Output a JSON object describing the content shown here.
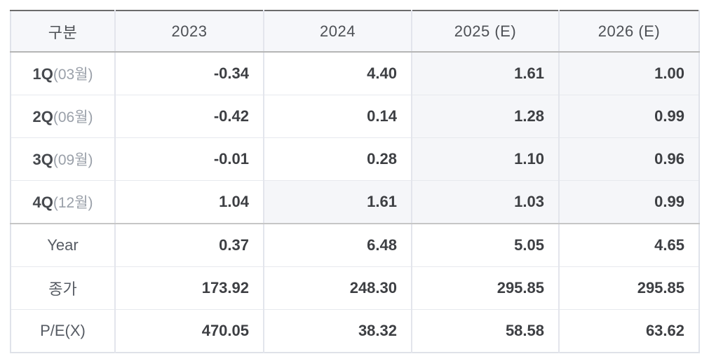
{
  "table": {
    "header": [
      "구분",
      "2023",
      "2024",
      "2025 (E)",
      "2026 (E)"
    ],
    "rows": [
      {
        "label": "1Q",
        "sublabel": "(03월)",
        "cells": [
          "-0.34",
          "4.40",
          "1.61",
          "1.00"
        ]
      },
      {
        "label": "2Q",
        "sublabel": "(06월)",
        "cells": [
          "-0.42",
          "0.14",
          "1.28",
          "0.99"
        ]
      },
      {
        "label": "3Q",
        "sublabel": "(09월)",
        "cells": [
          "-0.01",
          "0.28",
          "1.10",
          "0.96"
        ]
      },
      {
        "label": "4Q",
        "sublabel": "(12월)",
        "cells": [
          "1.04",
          "1.61",
          "1.03",
          "0.99"
        ]
      },
      {
        "label": "Year",
        "sublabel": "",
        "cells": [
          "0.37",
          "6.48",
          "5.05",
          "4.65"
        ]
      },
      {
        "label": "종가",
        "sublabel": "",
        "cells": [
          "173.92",
          "248.30",
          "295.85",
          "295.85"
        ]
      },
      {
        "label": "P/E(X)",
        "sublabel": "",
        "cells": [
          "470.05",
          "38.32",
          "58.58",
          "63.62"
        ]
      }
    ],
    "colors": {
      "top_border": "#6b6b6b",
      "header_bg": "#f6f7fa",
      "header_border": "#b5b5b5",
      "estimate_cell_bg": "#f5f6f9",
      "grid_line": "#e3e5ec",
      "section_border": "#c6c6c6",
      "number_text": "#3d3f43",
      "label_text": "#565b63",
      "sublabel_text": "#9aa0a9"
    }
  },
  "chart_data": {
    "type": "table",
    "title": "Quarterly EPS / Price / P-E estimates table",
    "columns": [
      "구분",
      "2023",
      "2024",
      "2025 (E)",
      "2026 (E)"
    ],
    "row_labels": [
      "1Q(03월)",
      "2Q(06월)",
      "3Q(09월)",
      "4Q(12월)",
      "Year",
      "종가",
      "P/E(X)"
    ],
    "rows": [
      [
        -0.34,
        4.4,
        1.61,
        1.0
      ],
      [
        -0.42,
        0.14,
        1.28,
        0.99
      ],
      [
        -0.01,
        0.28,
        1.1,
        0.96
      ],
      [
        1.04,
        1.61,
        1.03,
        0.99
      ],
      [
        0.37,
        6.48,
        5.05,
        4.65
      ],
      [
        173.92,
        248.3,
        295.85,
        295.85
      ],
      [
        470.05,
        38.32,
        58.58,
        63.62
      ]
    ],
    "estimated_cells_shaded": [
      "2024:4Q",
      "2025:1Q",
      "2025:2Q",
      "2025:3Q",
      "2025:4Q",
      "2026:1Q",
      "2026:2Q",
      "2026:3Q",
      "2026:4Q"
    ],
    "layout": "header row shaded; estimate cells lightly shaded; thick dark top rule; medium rule under header and above Year section"
  }
}
